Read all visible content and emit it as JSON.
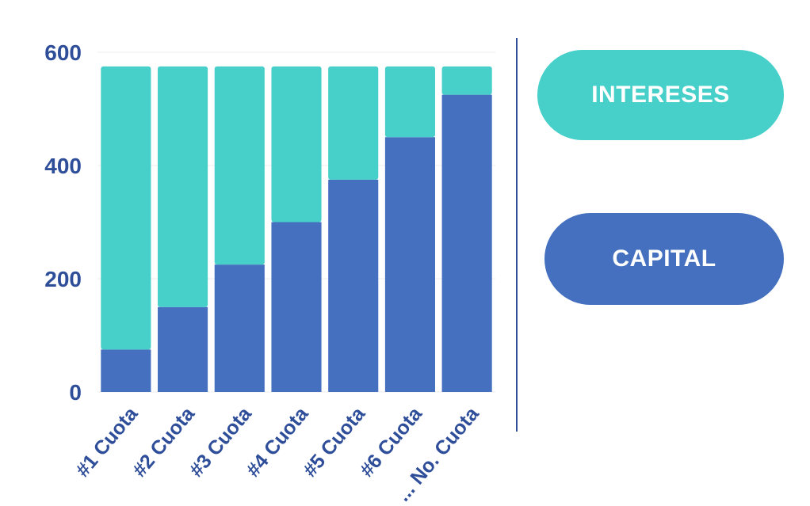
{
  "chart_data": {
    "type": "bar",
    "stacked": true,
    "categories": [
      "#1 Cuota",
      "#2 Cuota",
      "#3 Cuota",
      "#4 Cuota",
      "#5 Cuota",
      "#6 Cuota",
      "... No. Cuota"
    ],
    "series": [
      {
        "name": "CAPITAL",
        "color": "#4470bf",
        "values": [
          75,
          150,
          225,
          300,
          375,
          450,
          525
        ]
      },
      {
        "name": "INTERESES",
        "color": "#46d0c9",
        "values": [
          500,
          425,
          350,
          275,
          200,
          125,
          50
        ]
      }
    ],
    "ylim": [
      0,
      600
    ],
    "yticks": [
      0,
      200,
      400,
      600
    ],
    "title": "",
    "xlabel": "",
    "ylabel": "",
    "grid": true,
    "legend_position": "right"
  },
  "legend": {
    "intereses_label": "INTERESES",
    "capital_label": "CAPITAL"
  }
}
